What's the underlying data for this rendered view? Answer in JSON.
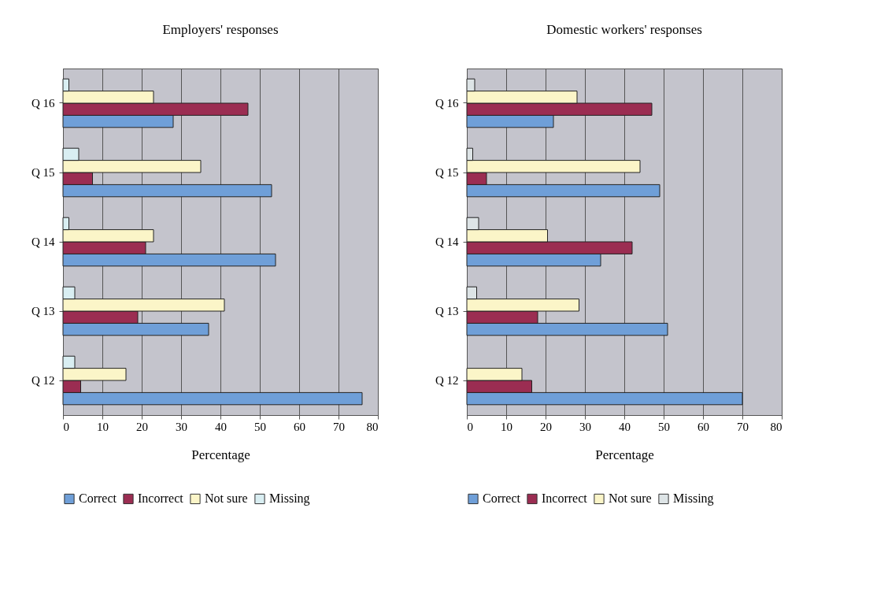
{
  "chart_data": [
    {
      "type": "bar",
      "orientation": "horizontal",
      "title": "Employers' responses",
      "xlabel": "Percentage",
      "categories": [
        "Q 16",
        "Q 15",
        "Q 14",
        "Q 13",
        "Q 12"
      ],
      "xlim": [
        0,
        80
      ],
      "xticks": [
        0,
        10,
        20,
        30,
        40,
        50,
        60,
        70,
        80
      ],
      "grid": "x",
      "legend": "bottom",
      "series": [
        {
          "name": "Correct",
          "color": "#6f9fd8",
          "values": [
            28,
            53,
            54,
            37,
            76
          ]
        },
        {
          "name": "Incorrect",
          "color": "#9b2d52",
          "values": [
            47,
            7.5,
            21,
            19,
            4.5
          ]
        },
        {
          "name": "Not sure",
          "color": "#fbf5c8",
          "values": [
            23,
            35,
            23,
            41,
            16
          ]
        },
        {
          "name": "Missing",
          "color": "#d9eef2",
          "values": [
            1.5,
            4,
            1.5,
            3,
            3
          ]
        }
      ]
    },
    {
      "type": "bar",
      "orientation": "horizontal",
      "title": "Domestic workers' responses",
      "xlabel": "Percentage",
      "categories": [
        "Q 16",
        "Q 15",
        "Q 14",
        "Q 13",
        "Q 12"
      ],
      "xlim": [
        0,
        80
      ],
      "xticks": [
        0,
        10,
        20,
        30,
        40,
        50,
        60,
        70,
        80
      ],
      "grid": "x",
      "legend": "bottom",
      "series": [
        {
          "name": "Correct",
          "color": "#6f9fd8",
          "values": [
            22,
            49,
            34,
            51,
            70
          ]
        },
        {
          "name": "Incorrect",
          "color": "#9b2d52",
          "values": [
            47,
            5,
            42,
            18,
            16.5
          ]
        },
        {
          "name": "Not sure",
          "color": "#fbf5c8",
          "values": [
            28,
            44,
            20.5,
            28.5,
            14
          ]
        },
        {
          "name": "Missing",
          "color": "#dde4e6",
          "values": [
            2,
            1.5,
            3,
            2.5,
            null
          ]
        }
      ]
    }
  ]
}
